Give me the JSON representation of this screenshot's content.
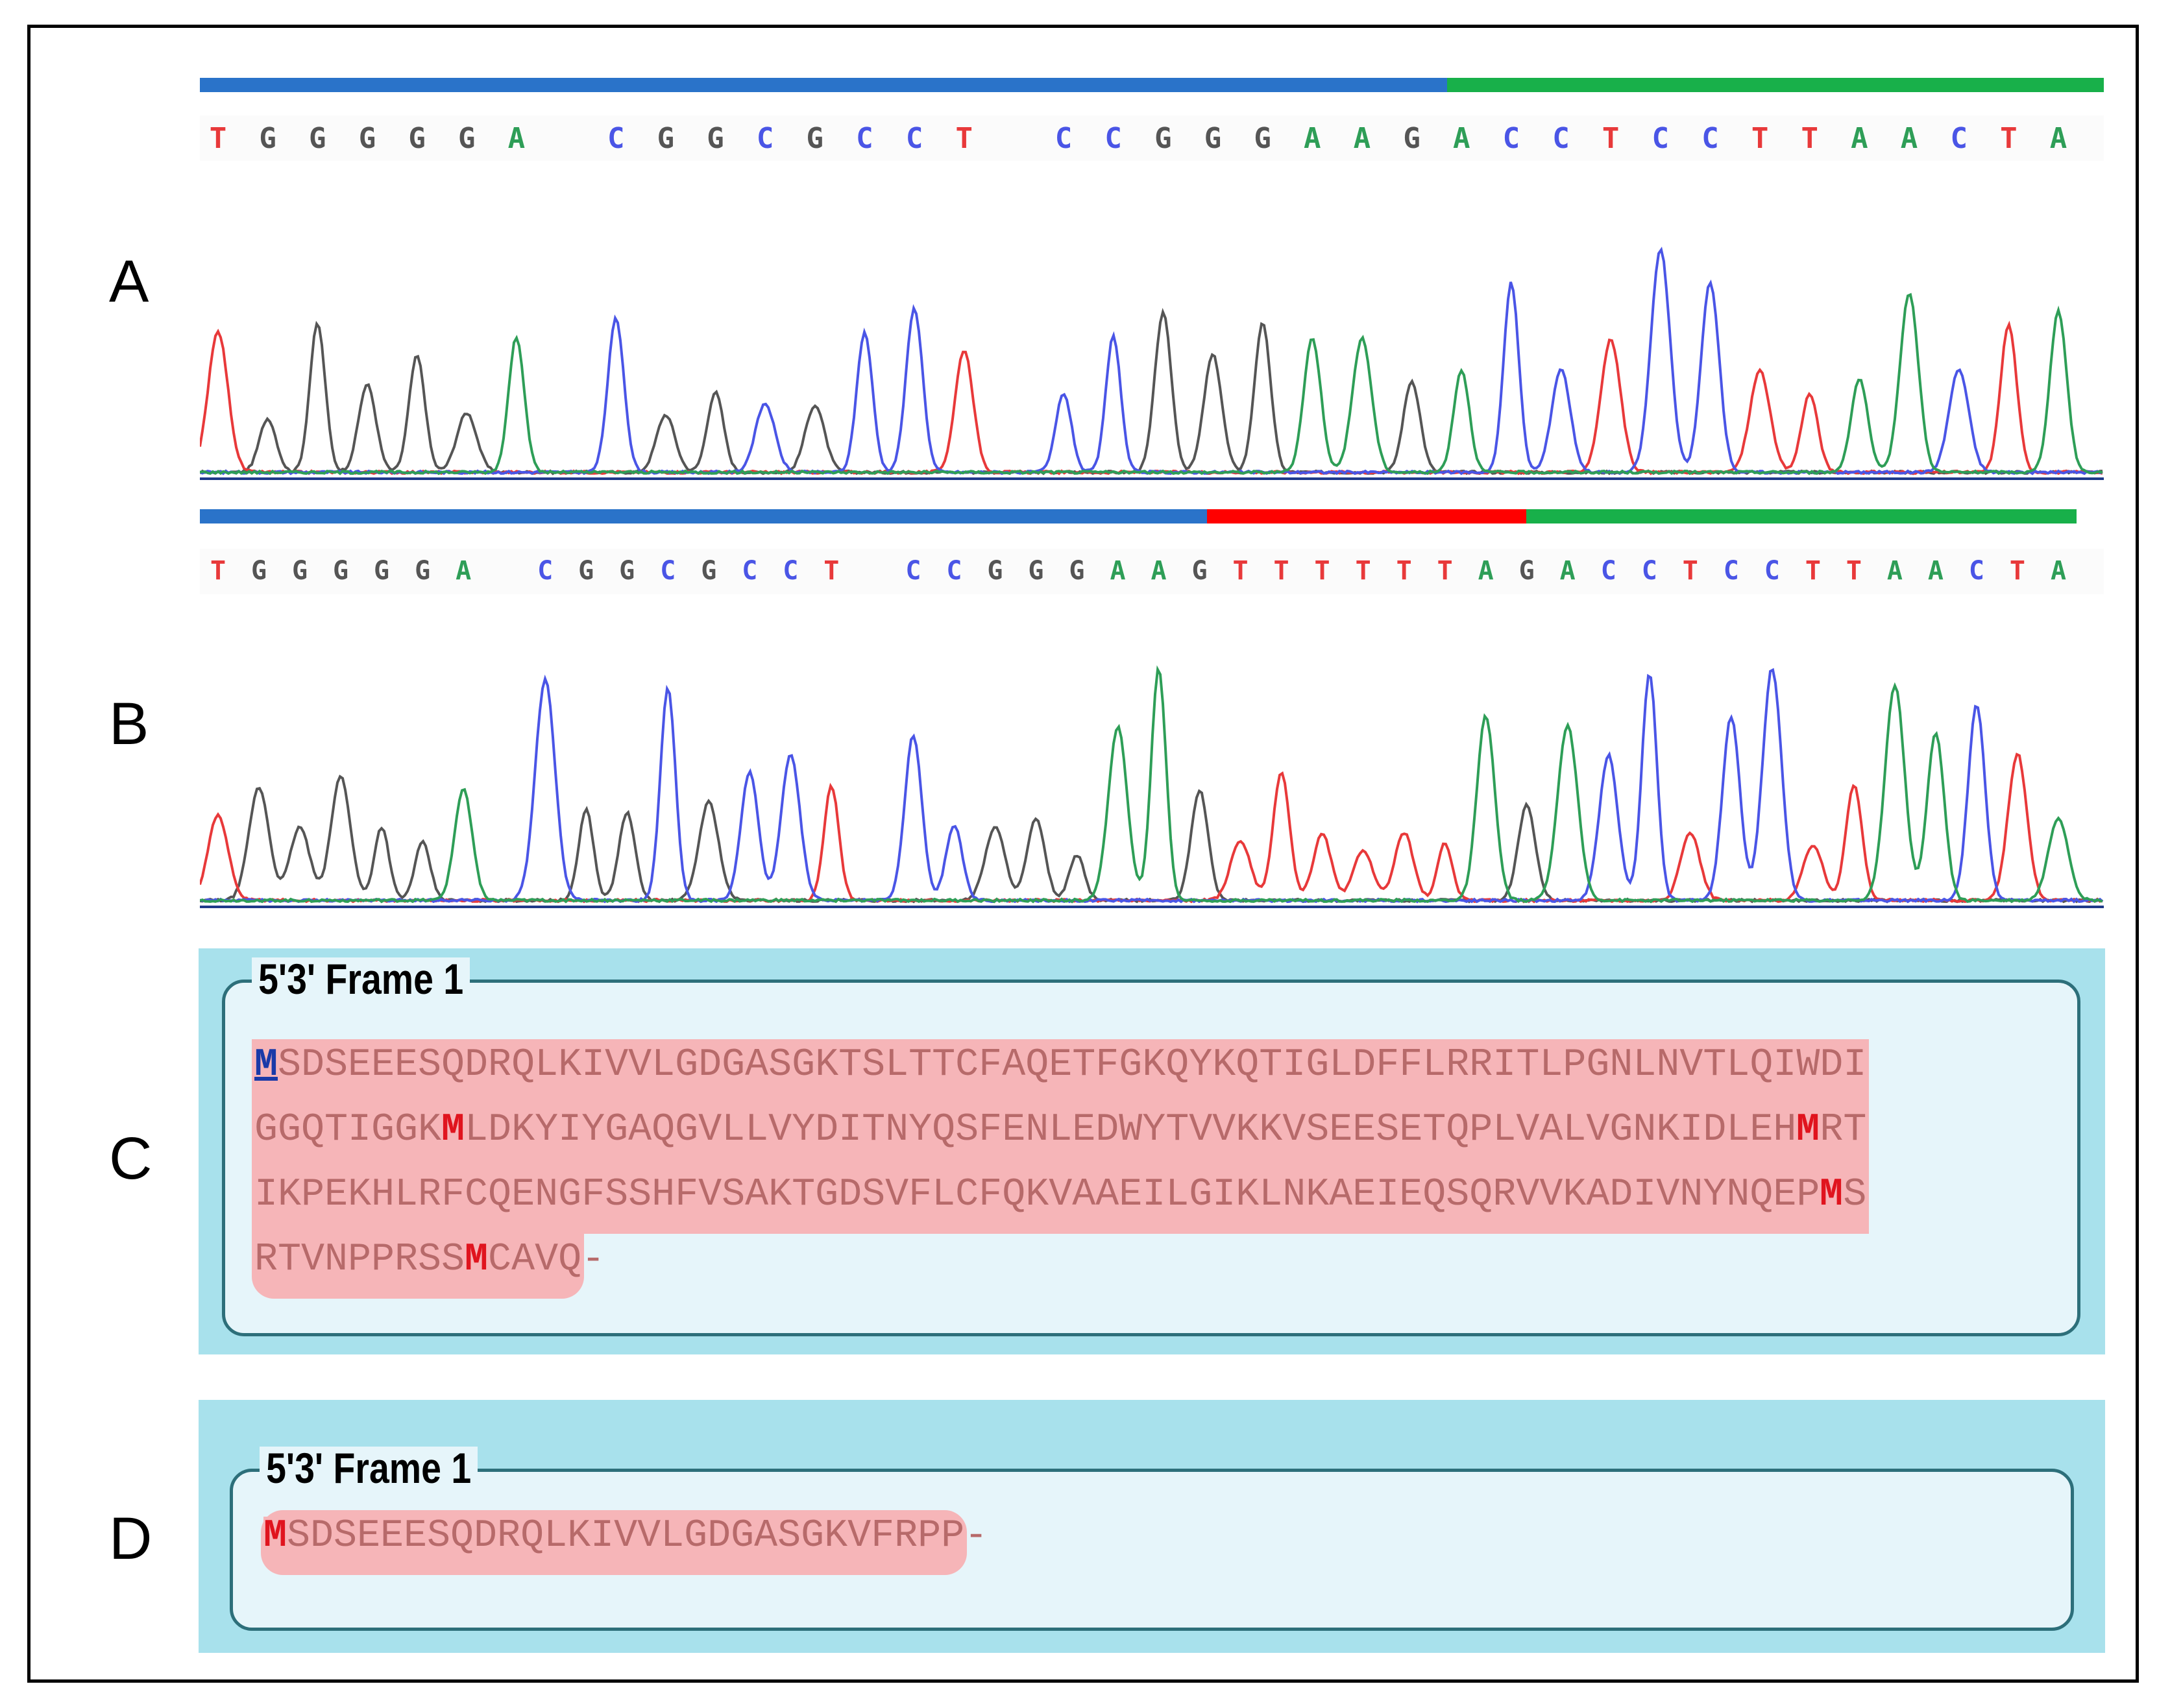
{
  "panels": {
    "a": {
      "letter": "A",
      "sequence": "TGGGGGA CGGCGCCT CCGGGAAGACCTCCTTAACTA"
    },
    "b": {
      "letter": "B",
      "sequence": "TGGGGGA CGGCGCCT CCGGGAAGTTTTTTAGACCTCCTTAACTA"
    },
    "c": {
      "letter": "C",
      "frame_title": "5'3' Frame 1",
      "lines": [
        "MSDSEEESQDRQLKIVVLGDGASGKTSLTTCFAQETFGKQYKQTIGLDFFLRRITLPGNLNVTLQIWDI",
        "GGQTIGGKMLDKYIYGAQGVLLVYDITNYQSFENLEDWYTVVKKVSEESETQPLVALVGNKIDLEHMRT",
        "IKPEKHLRFCQENGFSSHFVSAKTGDSVFLCFQKVAAEILGIKLNKAEIEQSQRVVKADIVNYNQEPMS",
        "RTVNPPRSSMCAVQ-"
      ]
    },
    "d": {
      "letter": "D",
      "frame_title": "5'3' Frame 1",
      "lines": [
        "MSDSEEESQDRQLKIVVLGDGASGKVFRPP-"
      ]
    }
  },
  "colors": {
    "A": "#2e9e57",
    "C": "#4a55e6",
    "G": "#555555",
    "T": "#e8393a",
    "bar_blue": "#2a73c9",
    "bar_green": "#18b04a",
    "bar_red": "#ff0000",
    "orf_highlight": "#f6b5b8",
    "methionine": "#e0141e",
    "start_codon": "#1a3aa8"
  }
}
